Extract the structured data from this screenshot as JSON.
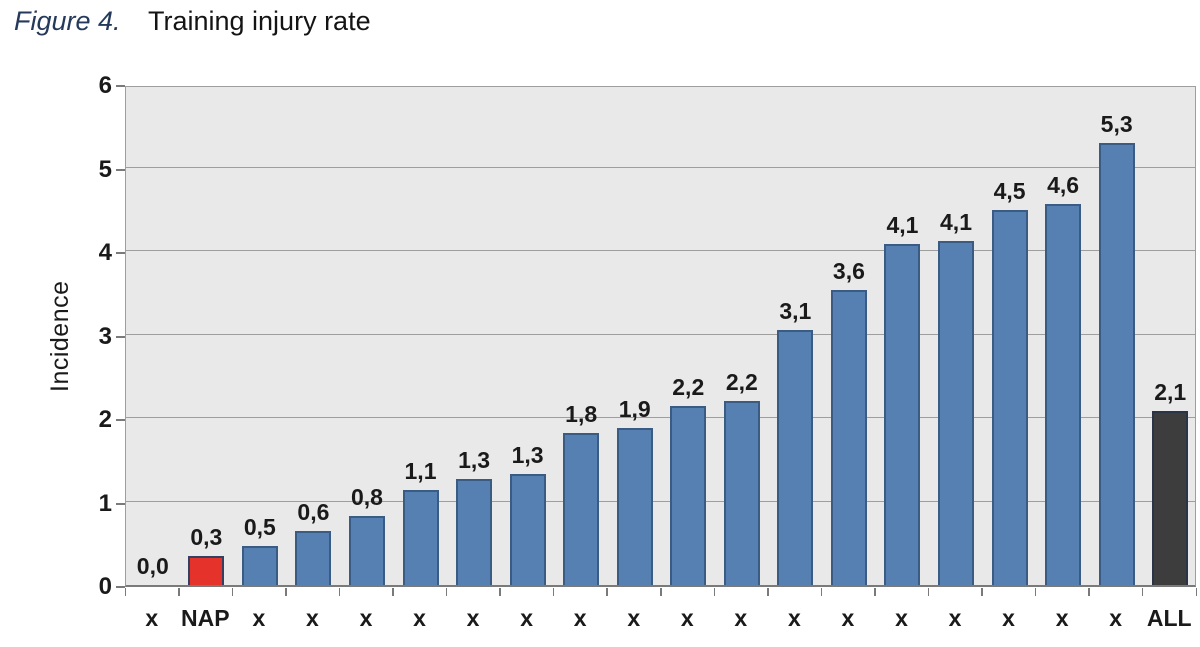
{
  "page": {
    "figure_label": "Figure 4.",
    "title": "Training injury rate"
  },
  "chart_data": {
    "type": "bar",
    "title": "Training injury rate",
    "xlabel": "",
    "ylabel": "Incidence",
    "ylim": [
      0,
      6
    ],
    "yticks": [
      0,
      1,
      2,
      3,
      4,
      5,
      6
    ],
    "grid": "horizontal",
    "legend_position": "none",
    "plot_background": "#e9e9e9",
    "categories": [
      "x",
      "NAP",
      "x",
      "x",
      "x",
      "x",
      "x",
      "x",
      "x",
      "x",
      "x",
      "x",
      "x",
      "x",
      "x",
      "x",
      "x",
      "x",
      "x",
      "ALL"
    ],
    "values": [
      0.0,
      0.3,
      0.5,
      0.6,
      0.8,
      1.1,
      1.3,
      1.3,
      1.8,
      1.9,
      2.2,
      2.2,
      3.1,
      3.6,
      4.1,
      4.1,
      4.5,
      4.6,
      5.3,
      2.1
    ],
    "value_labels": [
      "0,0",
      "0,3",
      "0,5",
      "0,6",
      "0,8",
      "1,1",
      "1,3",
      "1,3",
      "1,8",
      "1,9",
      "2,2",
      "2,2",
      "3,1",
      "3,6",
      "4,1",
      "4,1",
      "4,5",
      "4,6",
      "5,3",
      "2,1"
    ],
    "bar_heights_visual": [
      0,
      0.35,
      0.47,
      0.65,
      0.83,
      1.14,
      1.27,
      1.33,
      1.82,
      1.88,
      2.14,
      2.2,
      3.05,
      3.53,
      4.08,
      4.12,
      4.49,
      4.56,
      5.29,
      2.08
    ],
    "bar_styles": [
      "blue",
      "red",
      "blue",
      "blue",
      "blue",
      "blue",
      "blue",
      "blue",
      "blue",
      "blue",
      "blue",
      "blue",
      "blue",
      "blue",
      "blue",
      "blue",
      "blue",
      "blue",
      "blue",
      "dark"
    ],
    "palette": {
      "blue": {
        "fill": "#5680b2",
        "border": "#3a5b84"
      },
      "red": {
        "fill": "#e5332b",
        "border": "#34405f"
      },
      "dark": {
        "fill": "#3d3d3d",
        "border": "#2b3447"
      }
    },
    "colors": {
      "gridline": "#9e9e9e",
      "axis_line": "#7a7a7a",
      "text": "#1a1a1a",
      "figure_label": "#24395b"
    }
  }
}
